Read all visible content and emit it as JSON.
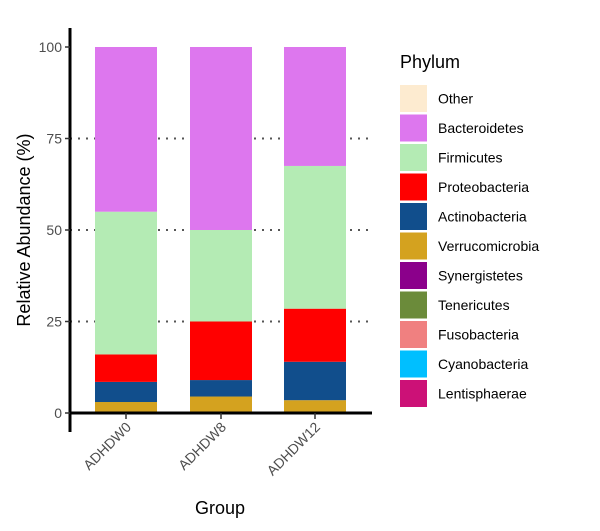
{
  "chart_data": {
    "type": "bar",
    "stacked": true,
    "categories": [
      "ADHDW0",
      "ADHDW8",
      "ADHDW12"
    ],
    "xlabel": "Group",
    "ylabel": "Relative Abundance (%)",
    "ylim": [
      0,
      100
    ],
    "yticks": [
      0,
      25,
      50,
      75,
      100
    ],
    "grid": "dotted horizontal at 25, 50, 75",
    "legend": {
      "title": "Phylum",
      "placement": "right"
    },
    "series": [
      {
        "name": "Other",
        "color": "#FDEBD0",
        "values": [
          0,
          0,
          0
        ]
      },
      {
        "name": "Bacteroidetes",
        "color": "#DD77EE",
        "values": [
          45,
          50,
          32.5
        ]
      },
      {
        "name": "Firmicutes",
        "color": "#B4EBB4",
        "values": [
          39,
          25,
          39
        ]
      },
      {
        "name": "Proteobacteria",
        "color": "#FF0000",
        "values": [
          7.5,
          16,
          14.5
        ]
      },
      {
        "name": "Actinobacteria",
        "color": "#114E8C",
        "values": [
          5.5,
          4.5,
          10.5
        ]
      },
      {
        "name": "Verrucomicrobia",
        "color": "#D4A21F",
        "values": [
          3,
          4.5,
          3.5
        ]
      },
      {
        "name": "Synergistetes",
        "color": "#8B008B",
        "values": [
          0,
          0,
          0
        ]
      },
      {
        "name": "Tenericutes",
        "color": "#6B8B3A",
        "values": [
          0,
          0,
          0
        ]
      },
      {
        "name": "Fusobacteria",
        "color": "#F08080",
        "values": [
          0,
          0,
          0
        ]
      },
      {
        "name": "Cyanobacteria",
        "color": "#00BFFF",
        "values": [
          0,
          0,
          0
        ]
      },
      {
        "name": "Lentisphaerae",
        "color": "#CC1177",
        "values": [
          0,
          0,
          0
        ]
      }
    ]
  }
}
